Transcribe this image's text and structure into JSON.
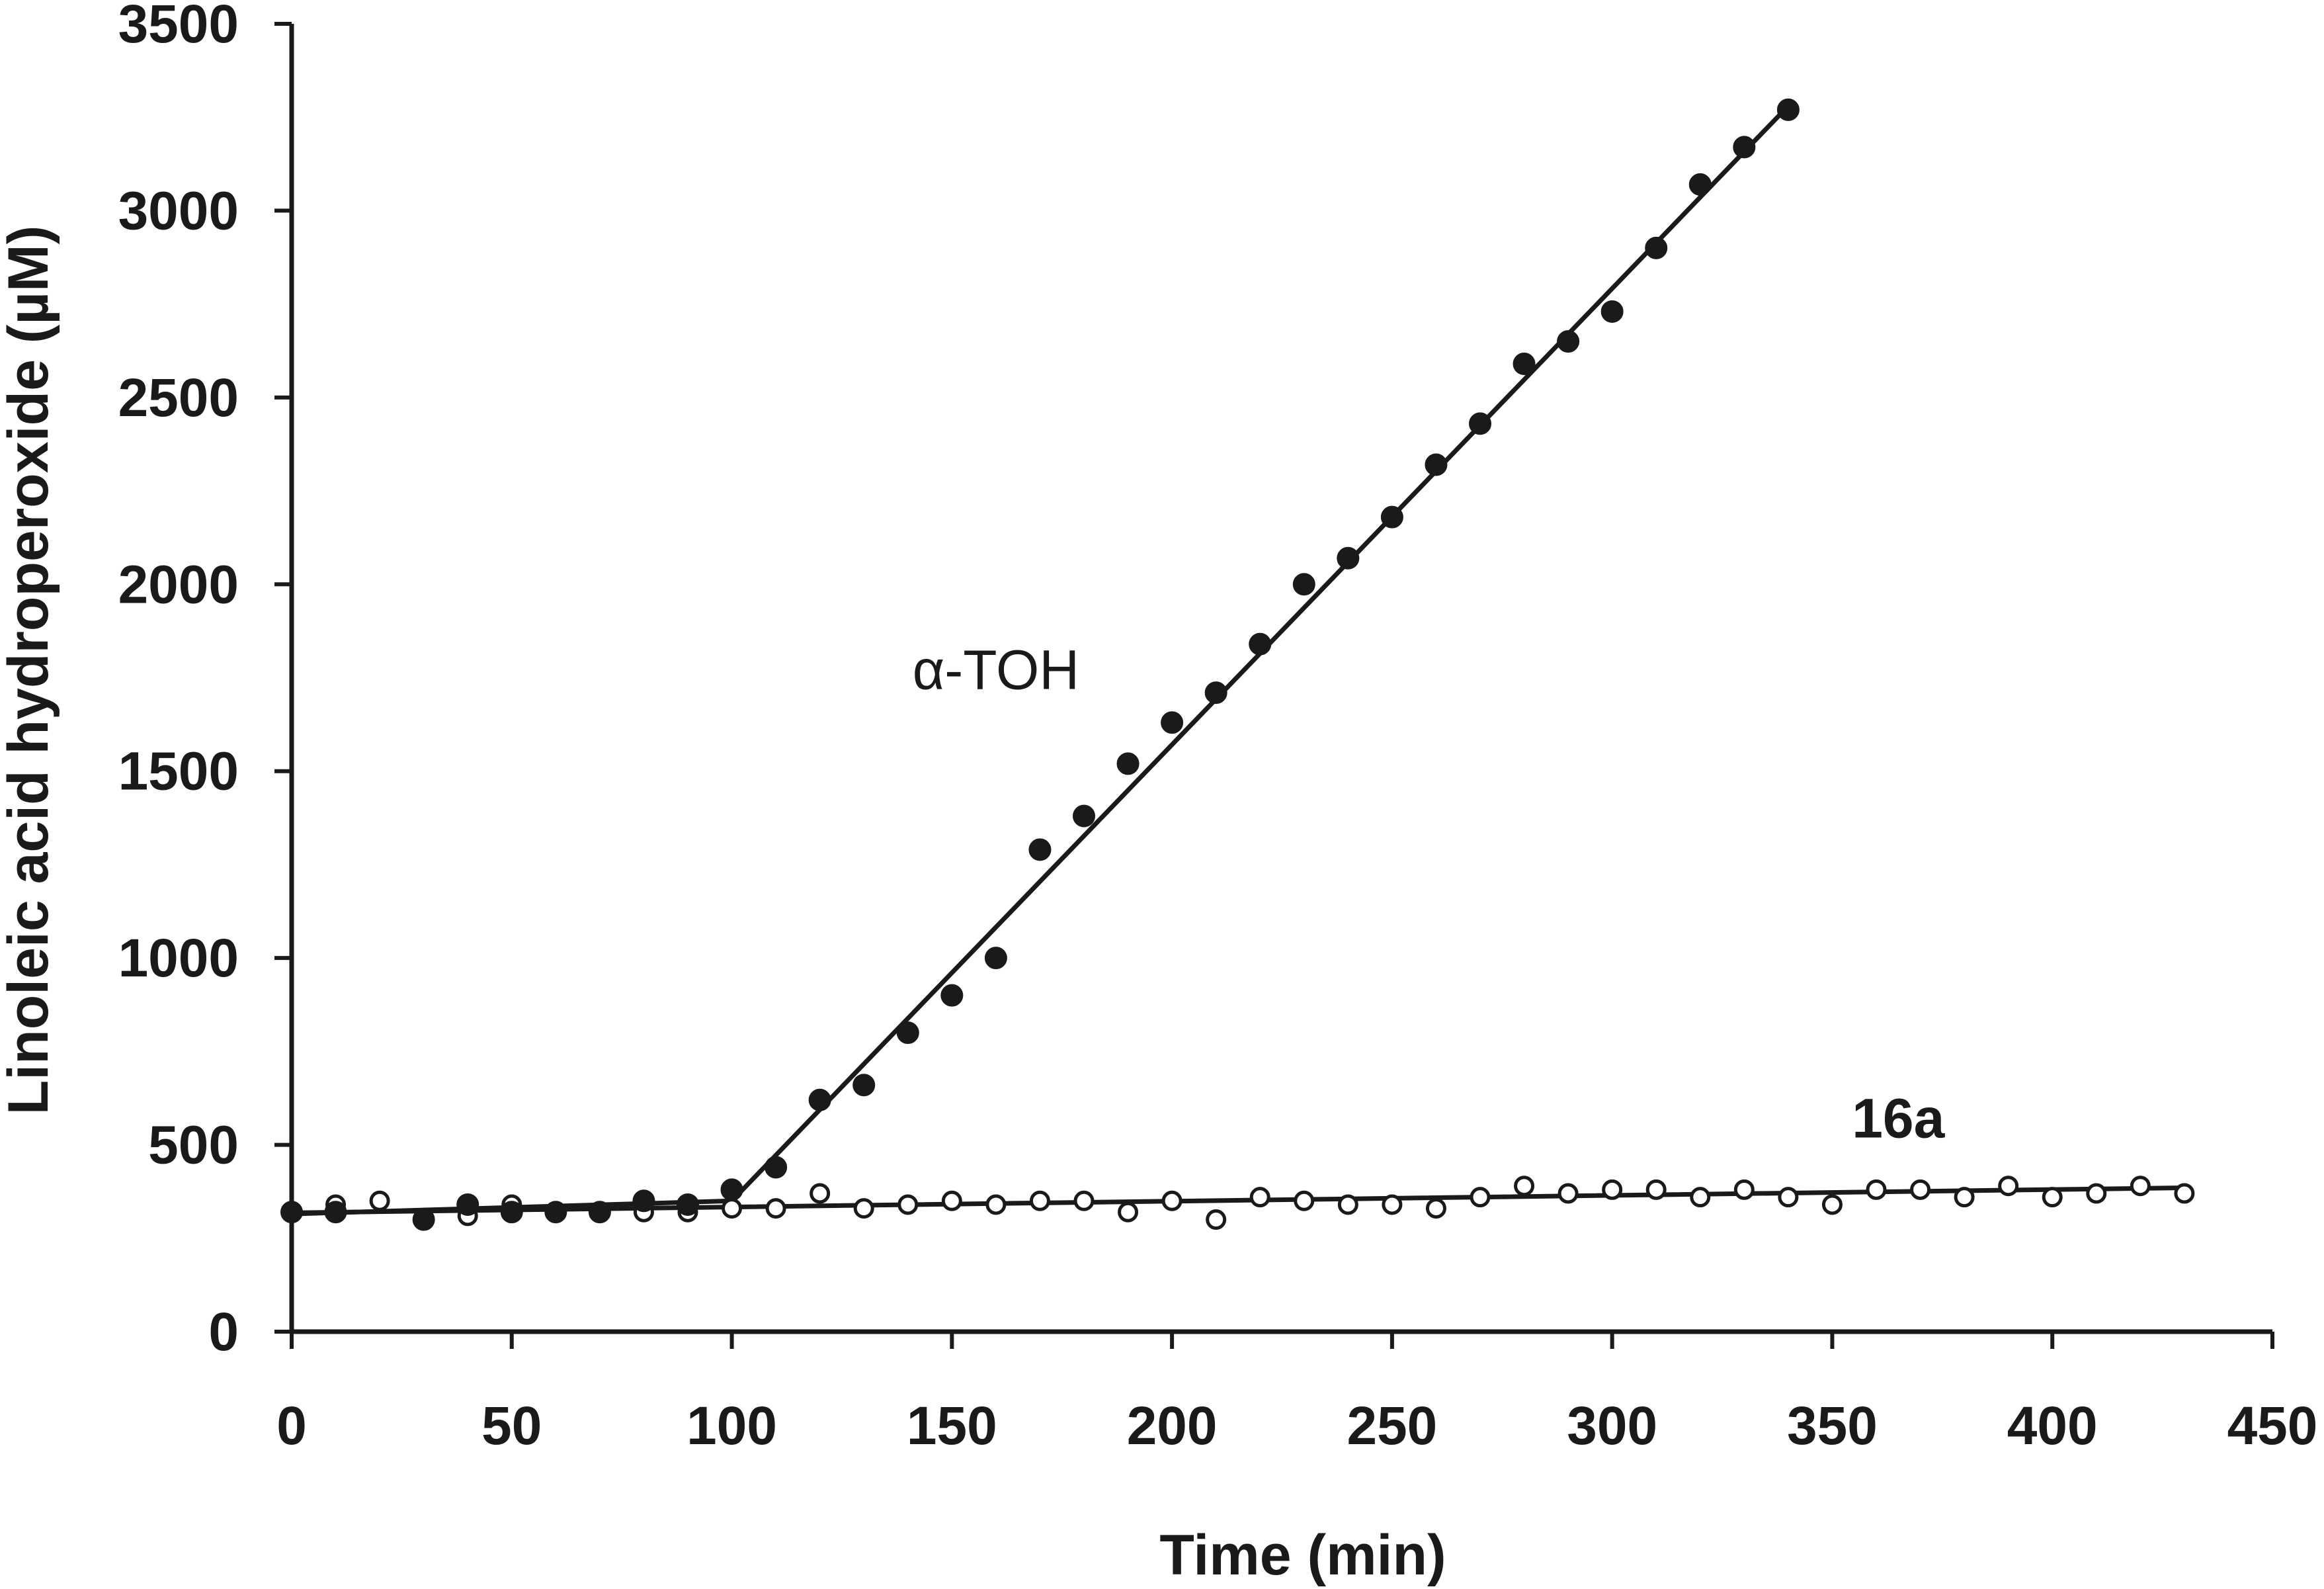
{
  "chart_data": {
    "type": "scatter",
    "xlabel": "Time (min)",
    "ylabel": "Linoleic acid hydroperoxide (µM)",
    "xlim": [
      0,
      450
    ],
    "ylim": [
      0,
      3500
    ],
    "x_ticks": [
      0,
      50,
      100,
      150,
      200,
      250,
      300,
      350,
      400,
      450
    ],
    "y_ticks": [
      0,
      500,
      1000,
      1500,
      2000,
      2500,
      3000,
      3500
    ],
    "grid": false,
    "series": [
      {
        "name": "α-TOH",
        "marker": "filled-circle",
        "color": "#1a1a1a",
        "points": [
          [
            0,
            320
          ],
          [
            10,
            320
          ],
          [
            30,
            300
          ],
          [
            40,
            340
          ],
          [
            50,
            320
          ],
          [
            60,
            320
          ],
          [
            70,
            320
          ],
          [
            80,
            350
          ],
          [
            90,
            340
          ],
          [
            100,
            380
          ],
          [
            110,
            440
          ],
          [
            120,
            620
          ],
          [
            130,
            660
          ],
          [
            140,
            800
          ],
          [
            150,
            900
          ],
          [
            160,
            1000
          ],
          [
            170,
            1290
          ],
          [
            180,
            1380
          ],
          [
            190,
            1520
          ],
          [
            200,
            1630
          ],
          [
            210,
            1710
          ],
          [
            220,
            1840
          ],
          [
            230,
            2000
          ],
          [
            240,
            2070
          ],
          [
            250,
            2180
          ],
          [
            260,
            2320
          ],
          [
            270,
            2430
          ],
          [
            280,
            2590
          ],
          [
            290,
            2650
          ],
          [
            300,
            2730
          ],
          [
            310,
            2900
          ],
          [
            320,
            3070
          ],
          [
            330,
            3170
          ],
          [
            340,
            3270
          ]
        ],
        "fit_lines": [
          [
            [
              0,
              315
            ],
            [
              100,
              350
            ]
          ],
          [
            [
              100,
              350
            ],
            [
              340,
              3280
            ]
          ]
        ]
      },
      {
        "name": "16a",
        "marker": "open-circle",
        "color": "#1a1a1a",
        "points": [
          [
            0,
            320
          ],
          [
            10,
            340
          ],
          [
            20,
            350
          ],
          [
            30,
            300
          ],
          [
            40,
            310
          ],
          [
            50,
            340
          ],
          [
            60,
            320
          ],
          [
            70,
            320
          ],
          [
            80,
            320
          ],
          [
            90,
            320
          ],
          [
            100,
            330
          ],
          [
            110,
            330
          ],
          [
            120,
            370
          ],
          [
            130,
            330
          ],
          [
            140,
            340
          ],
          [
            150,
            350
          ],
          [
            160,
            340
          ],
          [
            170,
            350
          ],
          [
            180,
            350
          ],
          [
            190,
            320
          ],
          [
            200,
            350
          ],
          [
            210,
            300
          ],
          [
            220,
            360
          ],
          [
            230,
            350
          ],
          [
            240,
            340
          ],
          [
            250,
            340
          ],
          [
            260,
            330
          ],
          [
            270,
            360
          ],
          [
            280,
            390
          ],
          [
            290,
            370
          ],
          [
            300,
            380
          ],
          [
            310,
            380
          ],
          [
            320,
            360
          ],
          [
            330,
            380
          ],
          [
            340,
            360
          ],
          [
            350,
            340
          ],
          [
            360,
            380
          ],
          [
            370,
            380
          ],
          [
            380,
            360
          ],
          [
            390,
            390
          ],
          [
            400,
            360
          ],
          [
            410,
            370
          ],
          [
            420,
            390
          ],
          [
            430,
            370
          ]
        ],
        "fit_lines": [
          [
            [
              0,
              318
            ],
            [
              430,
              385
            ]
          ]
        ]
      }
    ],
    "annotations": [
      {
        "text": "α-TOH",
        "x": 160,
        "y": 1720,
        "weight": "normal"
      },
      {
        "text": "16a",
        "x": 365,
        "y": 520,
        "weight": "bold"
      }
    ]
  }
}
